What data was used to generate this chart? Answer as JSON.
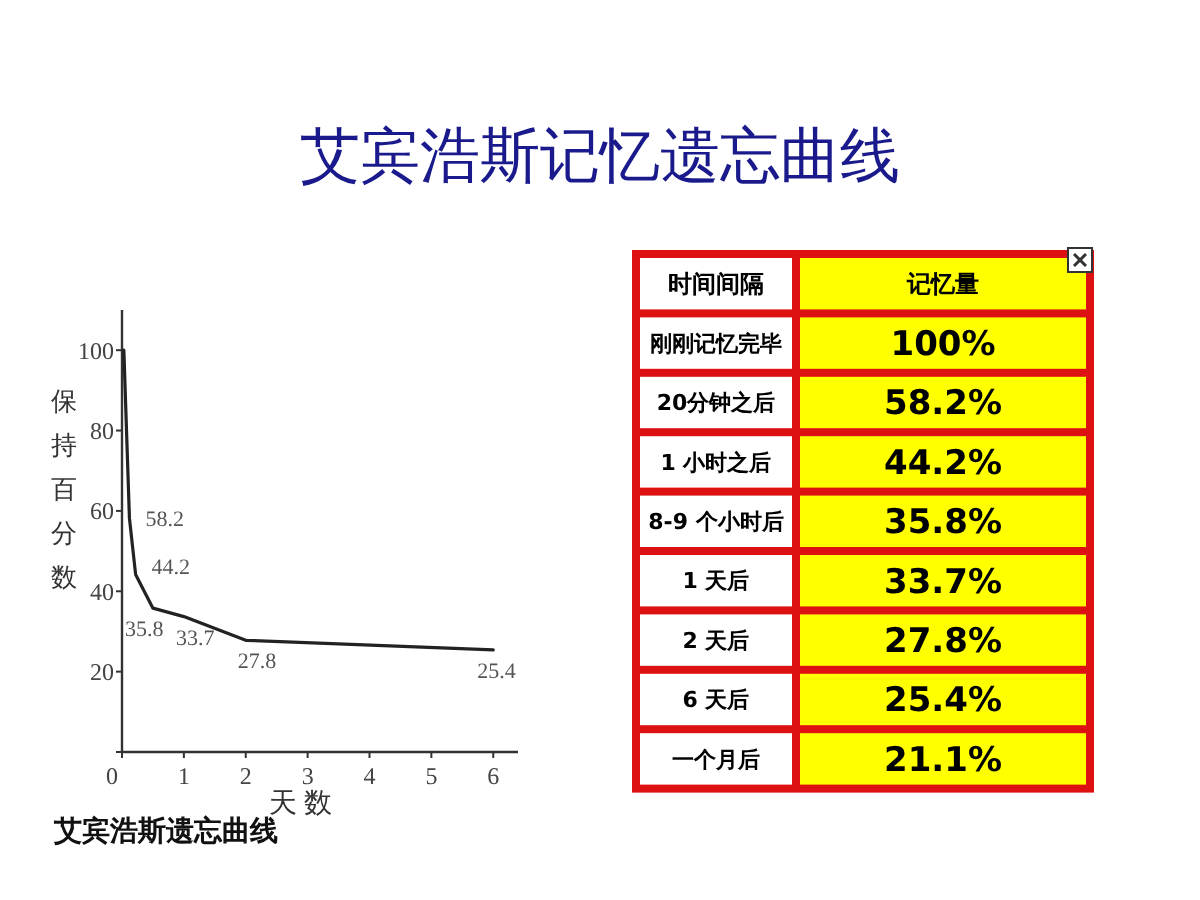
{
  "chart_data": [
    {
      "type": "line",
      "title": "艾宾浩斯记忆遗忘曲线",
      "xlabel": "天 数",
      "ylabel": "保持百分数",
      "x": [
        0.03,
        0.12,
        0.22,
        0.5,
        1,
        2,
        6
      ],
      "series": [
        {
          "color": "#222222",
          "values": [
            100,
            58.2,
            44.2,
            35.8,
            33.7,
            27.8,
            25.4
          ],
          "value_labels": [
            null,
            "58.2",
            "44.2",
            "35.8",
            "33.7",
            "27.8",
            "25.4"
          ]
        }
      ],
      "xlim": [
        0,
        6.4
      ],
      "ylim": [
        0,
        110
      ],
      "xticks": [
        0,
        1,
        2,
        3,
        4,
        5,
        6
      ],
      "yticks": [
        {
          "value": 0,
          "label": null
        },
        20,
        40,
        60,
        80,
        100
      ],
      "grid": false,
      "marker": "none",
      "line_style": "solid",
      "annotations": [
        "艾宾浩斯遗忘曲线"
      ]
    },
    {
      "type": "other",
      "xlabel": "时间间隔",
      "ylabel": "记忆量",
      "categories": [
        "刚刚记忆完毕",
        "20分钟之后",
        "1 小时之后",
        "8-9 个小时后",
        "1 天后",
        "2 天后",
        "6 天后",
        "一个月后"
      ],
      "value_labels": [
        "100%",
        "58.2%",
        "44.2%",
        "35.8%",
        "33.7%",
        "27.8%",
        "25.4%",
        "21.1%"
      ]
    }
  ]
}
